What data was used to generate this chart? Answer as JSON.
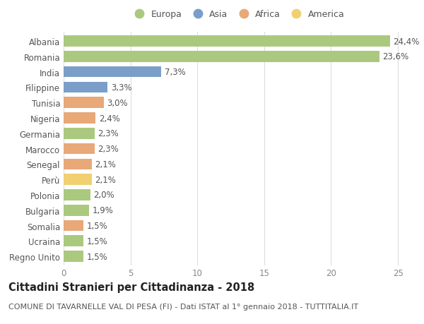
{
  "countries": [
    "Albania",
    "Romania",
    "India",
    "Filippine",
    "Tunisia",
    "Nigeria",
    "Germania",
    "Marocco",
    "Senegal",
    "Perù",
    "Polonia",
    "Bulgaria",
    "Somalia",
    "Ucraina",
    "Regno Unito"
  ],
  "values": [
    24.4,
    23.6,
    7.3,
    3.3,
    3.0,
    2.4,
    2.3,
    2.3,
    2.1,
    2.1,
    2.0,
    1.9,
    1.5,
    1.5,
    1.5
  ],
  "labels": [
    "24,4%",
    "23,6%",
    "7,3%",
    "3,3%",
    "3,0%",
    "2,4%",
    "2,3%",
    "2,3%",
    "2,1%",
    "2,1%",
    "2,0%",
    "1,9%",
    "1,5%",
    "1,5%",
    "1,5%"
  ],
  "continents": [
    "Europa",
    "Europa",
    "Asia",
    "Asia",
    "Africa",
    "Africa",
    "Europa",
    "Africa",
    "Africa",
    "America",
    "Europa",
    "Europa",
    "Africa",
    "Europa",
    "Europa"
  ],
  "continent_colors": {
    "Europa": "#aac97e",
    "Asia": "#7b9ec9",
    "Africa": "#e8a878",
    "America": "#f0d070"
  },
  "legend_order": [
    "Europa",
    "Asia",
    "Africa",
    "America"
  ],
  "title": "Cittadini Stranieri per Cittadinanza - 2018",
  "subtitle": "COMUNE DI TAVARNELLE VAL DI PESA (FI) - Dati ISTAT al 1° gennaio 2018 - TUTTITALIA.IT",
  "xlim": [
    0,
    26
  ],
  "xticks": [
    0,
    5,
    10,
    15,
    20,
    25
  ],
  "bg_color": "#ffffff",
  "grid_color": "#dddddd",
  "bar_height": 0.72,
  "label_fontsize": 8.5,
  "tick_fontsize": 8.5,
  "title_fontsize": 10.5,
  "subtitle_fontsize": 8
}
